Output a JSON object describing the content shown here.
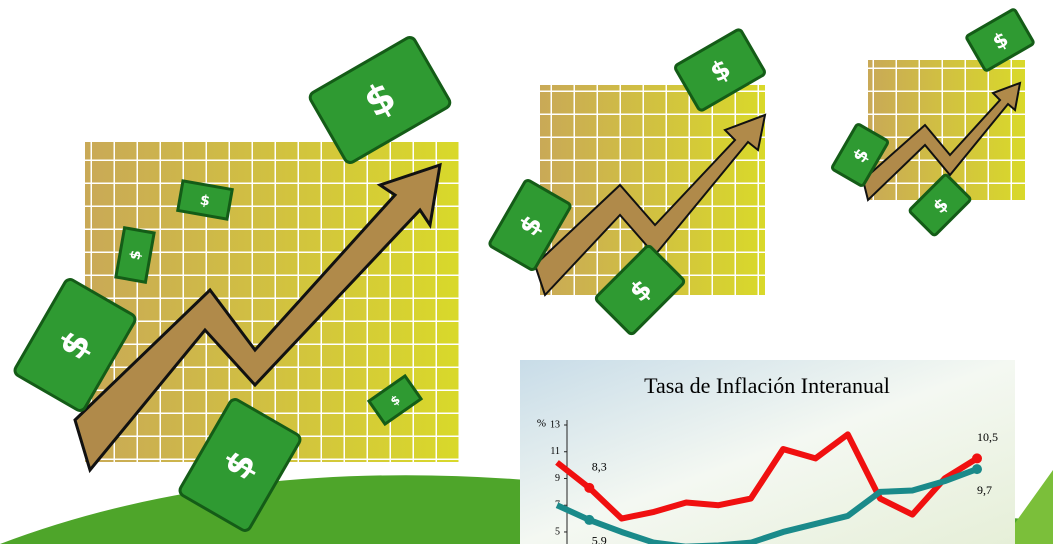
{
  "chart_data": {
    "type": "line",
    "title": "Tasa de Inflación Interanual",
    "y_unit": "%",
    "categories": [
      null,
      null,
      null,
      null,
      null,
      null,
      null,
      null,
      null,
      null,
      null,
      null,
      null,
      null
    ],
    "series": [
      {
        "color": "#f01010",
        "values": [
          10.2,
          8.3,
          6.0,
          6.5,
          7.2,
          7.0,
          7.5,
          11.2,
          10.5,
          12.3,
          7.5,
          6.3,
          9.0,
          10.5
        ],
        "value_labels": [
          null,
          "8,3",
          null,
          null,
          null,
          null,
          null,
          null,
          null,
          null,
          null,
          null,
          null,
          "10,5"
        ]
      },
      {
        "color": "#1a8a8a",
        "values": [
          7.0,
          5.9,
          5.0,
          4.2,
          3.9,
          4.0,
          4.2,
          5.0,
          5.6,
          6.2,
          8.0,
          8.1,
          8.8,
          9.7
        ],
        "value_labels": [
          null,
          "5,9",
          null,
          null,
          null,
          null,
          null,
          null,
          null,
          null,
          null,
          null,
          null,
          "9,7"
        ]
      }
    ],
    "ylim": [
      4.1,
      13
    ],
    "yticks": [
      5,
      7,
      9,
      11,
      13
    ]
  }
}
